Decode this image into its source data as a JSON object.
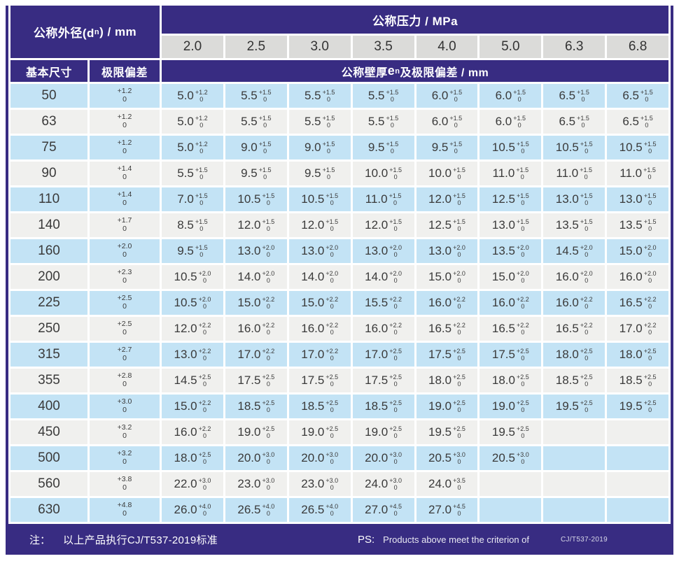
{
  "header": {
    "diameter": {
      "prefix": "公称外径(d",
      "sub": "n",
      "suffix": ") / mm"
    },
    "pressure_title": "公称压力 / MPa",
    "pressures": [
      "2.0",
      "2.5",
      "3.0",
      "3.5",
      "4.0",
      "5.0",
      "6.3",
      "6.8"
    ],
    "basic_size": "基本尺寸",
    "limit_deviation": "极限偏差",
    "wall": {
      "prefix": "公称壁厚",
      "e": "e",
      "sub": "n",
      "suffix": " 及极限偏差 / mm"
    }
  },
  "tol_lower": "0",
  "rows": [
    {
      "dn": "50",
      "dev": "+1.2",
      "cells": [
        [
          "5.0",
          "+1.2"
        ],
        [
          "5.5",
          "+1.5"
        ],
        [
          "5.5",
          "+1.5"
        ],
        [
          "5.5",
          "+1.5"
        ],
        [
          "6.0",
          "+1.5"
        ],
        [
          "6.0",
          "+1.5"
        ],
        [
          "6.5",
          "+1.5"
        ],
        [
          "6.5",
          "+1.5"
        ]
      ]
    },
    {
      "dn": "63",
      "dev": "+1.2",
      "cells": [
        [
          "5.0",
          "+1.2"
        ],
        [
          "5.5",
          "+1.5"
        ],
        [
          "5.5",
          "+1.5"
        ],
        [
          "5.5",
          "+1.5"
        ],
        [
          "6.0",
          "+1.5"
        ],
        [
          "6.0",
          "+1.5"
        ],
        [
          "6.5",
          "+1.5"
        ],
        [
          "6.5",
          "+1.5"
        ]
      ]
    },
    {
      "dn": "75",
      "dev": "+1.2",
      "cells": [
        [
          "5.0",
          "+1.2"
        ],
        [
          "9.0",
          "+1.5"
        ],
        [
          "9.0",
          "+1.5"
        ],
        [
          "9.5",
          "+1.5"
        ],
        [
          "9.5",
          "+1.5"
        ],
        [
          "10.5",
          "+1.5"
        ],
        [
          "10.5",
          "+1.5"
        ],
        [
          "10.5",
          "+1.5"
        ]
      ]
    },
    {
      "dn": "90",
      "dev": "+1.4",
      "cells": [
        [
          "5.5",
          "+1.5"
        ],
        [
          "9.5",
          "+1.5"
        ],
        [
          "9.5",
          "+1.5"
        ],
        [
          "10.0",
          "+1.5"
        ],
        [
          "10.0",
          "+1.5"
        ],
        [
          "11.0",
          "+1.5"
        ],
        [
          "11.0",
          "+1.5"
        ],
        [
          "11.0",
          "+1.5"
        ]
      ]
    },
    {
      "dn": "110",
      "dev": "+1.4",
      "cells": [
        [
          "7.0",
          "+1.5"
        ],
        [
          "10.5",
          "+1.5"
        ],
        [
          "10.5",
          "+1.5"
        ],
        [
          "11.0",
          "+1.5"
        ],
        [
          "12.0",
          "+1.5"
        ],
        [
          "12.5",
          "+1.5"
        ],
        [
          "13.0",
          "+1.5"
        ],
        [
          "13.0",
          "+1.5"
        ]
      ]
    },
    {
      "dn": "140",
      "dev": "+1.7",
      "cells": [
        [
          "8.5",
          "+1.5"
        ],
        [
          "12.0",
          "+1.5"
        ],
        [
          "12.0",
          "+1.5"
        ],
        [
          "12.0",
          "+1.5"
        ],
        [
          "12.5",
          "+1.5"
        ],
        [
          "13.0",
          "+1.5"
        ],
        [
          "13.5",
          "+1.5"
        ],
        [
          "13.5",
          "+1.5"
        ]
      ]
    },
    {
      "dn": "160",
      "dev": "+2.0",
      "cells": [
        [
          "9.5",
          "+1.5"
        ],
        [
          "13.0",
          "+2.0"
        ],
        [
          "13.0",
          "+2.0"
        ],
        [
          "13.0",
          "+2.0"
        ],
        [
          "13.0",
          "+2.0"
        ],
        [
          "13.5",
          "+2.0"
        ],
        [
          "14.5",
          "+2.0"
        ],
        [
          "15.0",
          "+2.0"
        ]
      ]
    },
    {
      "dn": "200",
      "dev": "+2.3",
      "cells": [
        [
          "10.5",
          "+2.0"
        ],
        [
          "14.0",
          "+2.0"
        ],
        [
          "14.0",
          "+2.0"
        ],
        [
          "14.0",
          "+2.0"
        ],
        [
          "15.0",
          "+2.0"
        ],
        [
          "15.0",
          "+2.0"
        ],
        [
          "16.0",
          "+2.0"
        ],
        [
          "16.0",
          "+2.0"
        ]
      ]
    },
    {
      "dn": "225",
      "dev": "+2.5",
      "cells": [
        [
          "10.5",
          "+2.0"
        ],
        [
          "15.0",
          "+2.2"
        ],
        [
          "15.0",
          "+2.2"
        ],
        [
          "15.5",
          "+2.2"
        ],
        [
          "16.0",
          "+2.2"
        ],
        [
          "16.0",
          "+2.2"
        ],
        [
          "16.0",
          "+2.2"
        ],
        [
          "16.5",
          "+2.2"
        ]
      ]
    },
    {
      "dn": "250",
      "dev": "+2.5",
      "cells": [
        [
          "12.0",
          "+2.2"
        ],
        [
          "16.0",
          "+2.2"
        ],
        [
          "16.0",
          "+2.2"
        ],
        [
          "16.0",
          "+2.2"
        ],
        [
          "16.5",
          "+2.2"
        ],
        [
          "16.5",
          "+2.2"
        ],
        [
          "16.5",
          "+2.2"
        ],
        [
          "17.0",
          "+2.2"
        ]
      ]
    },
    {
      "dn": "315",
      "dev": "+2.7",
      "cells": [
        [
          "13.0",
          "+2.2"
        ],
        [
          "17.0",
          "+2.2"
        ],
        [
          "17.0",
          "+2.2"
        ],
        [
          "17.0",
          "+2.5"
        ],
        [
          "17.5",
          "+2.5"
        ],
        [
          "17.5",
          "+2.5"
        ],
        [
          "18.0",
          "+2.5"
        ],
        [
          "18.0",
          "+2.5"
        ]
      ]
    },
    {
      "dn": "355",
      "dev": "+2.8",
      "cells": [
        [
          "14.5",
          "+2.5"
        ],
        [
          "17.5",
          "+2.5"
        ],
        [
          "17.5",
          "+2.5"
        ],
        [
          "17.5",
          "+2.5"
        ],
        [
          "18.0",
          "+2.5"
        ],
        [
          "18.0",
          "+2.5"
        ],
        [
          "18.5",
          "+2.5"
        ],
        [
          "18.5",
          "+2.5"
        ]
      ]
    },
    {
      "dn": "400",
      "dev": "+3.0",
      "cells": [
        [
          "15.0",
          "+2.2"
        ],
        [
          "18.5",
          "+2.5"
        ],
        [
          "18.5",
          "+2.5"
        ],
        [
          "18.5",
          "+2.5"
        ],
        [
          "19.0",
          "+2.5"
        ],
        [
          "19.0",
          "+2.5"
        ],
        [
          "19.5",
          "+2.5"
        ],
        [
          "19.5",
          "+2.5"
        ]
      ]
    },
    {
      "dn": "450",
      "dev": "+3.2",
      "cells": [
        [
          "16.0",
          "+2.2"
        ],
        [
          "19.0",
          "+2.5"
        ],
        [
          "19.0",
          "+2.5"
        ],
        [
          "19.0",
          "+2.5"
        ],
        [
          "19.5",
          "+2.5"
        ],
        [
          "19.5",
          "+2.5"
        ],
        null,
        null
      ]
    },
    {
      "dn": "500",
      "dev": "+3.2",
      "cells": [
        [
          "18.0",
          "+2.5"
        ],
        [
          "20.0",
          "+3.0"
        ],
        [
          "20.0",
          "+3.0"
        ],
        [
          "20.0",
          "+3.0"
        ],
        [
          "20.5",
          "+3.0"
        ],
        [
          "20.5",
          "+3.0"
        ],
        null,
        null
      ]
    },
    {
      "dn": "560",
      "dev": "+3.8",
      "cells": [
        [
          "22.0",
          "+3.0"
        ],
        [
          "23.0",
          "+3.0"
        ],
        [
          "23.0",
          "+3.0"
        ],
        [
          "24.0",
          "+3.0"
        ],
        [
          "24.0",
          "+3.5"
        ],
        null,
        null,
        null
      ]
    },
    {
      "dn": "630",
      "dev": "+4.8",
      "cells": [
        [
          "26.0",
          "+4.0"
        ],
        [
          "26.5",
          "+4.0"
        ],
        [
          "26.5",
          "+4.0"
        ],
        [
          "27.0",
          "+4.5"
        ],
        [
          "27.0",
          "+4.5"
        ],
        null,
        null,
        null
      ]
    }
  ],
  "footer": {
    "note_label": "注：",
    "note_text": "以上产品执行CJ/T537-2019标准",
    "ps_label": "PS:",
    "ps_text": "Products above meet the criterion of",
    "ps_standard": "CJ/T537-2019"
  },
  "colors": {
    "purple": "#382c82",
    "row_blue": "#c3e3f5",
    "row_gray": "#f0f0ee",
    "header_gray": "#dbdbd9",
    "text_dark": "#3a3a3a"
  }
}
